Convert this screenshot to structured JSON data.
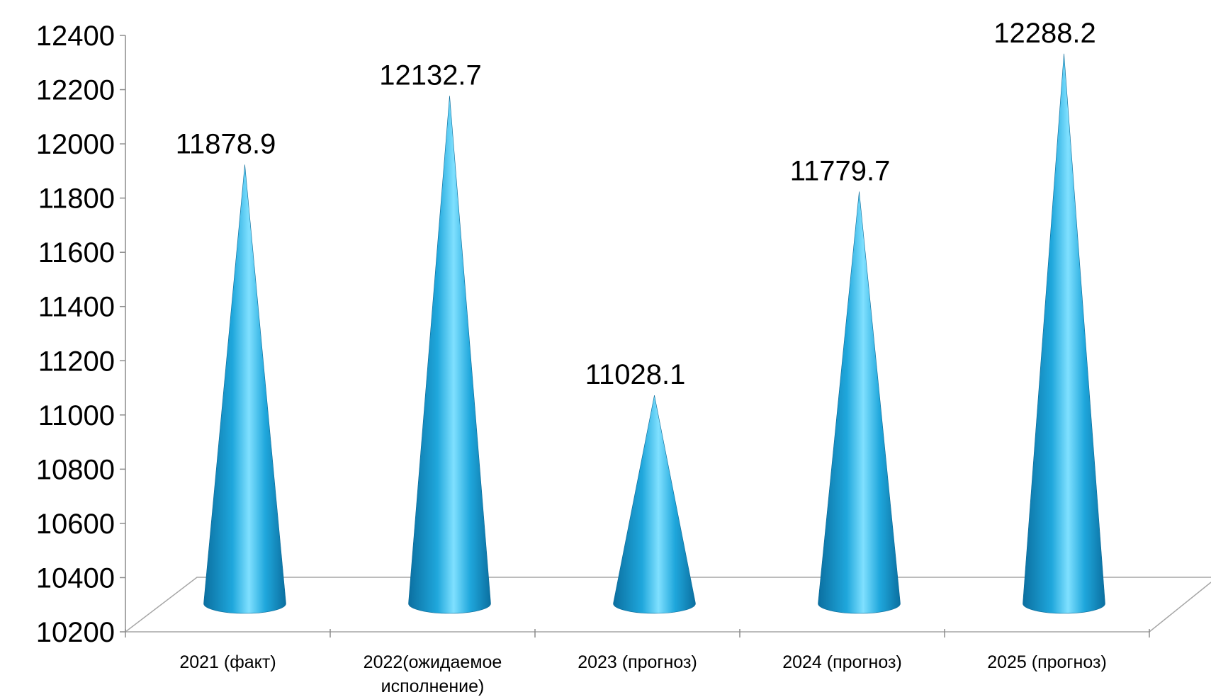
{
  "chart_data": {
    "type": "bar",
    "bar_shape": "cone",
    "categories": [
      "2021 (факт)",
      "2022(ожидаемое исполнение)",
      "2023 (прогноз)",
      "2024 (прогноз)",
      "2025 (прогноз)"
    ],
    "category_lines": [
      [
        "2021 (факт)"
      ],
      [
        "2022(ожидаемое",
        "исполнение)"
      ],
      [
        "2023 (прогноз)"
      ],
      [
        "2024 (прогноз)"
      ],
      [
        "2025 (прогноз)"
      ]
    ],
    "values": [
      11878.9,
      12132.7,
      11028.1,
      11779.7,
      12288.2
    ],
    "value_labels": [
      "11878.9",
      "12132.7",
      "11028.1",
      "11779.7",
      "12288.2"
    ],
    "ylim": [
      10200,
      12400
    ],
    "yticks": [
      10200,
      10400,
      10600,
      10800,
      11000,
      11200,
      11400,
      11600,
      11800,
      12000,
      12200,
      12400
    ],
    "title": "",
    "xlabel": "",
    "ylabel": "",
    "grid": false,
    "legend": false,
    "colors": {
      "cone_edge": "#0b6fa0",
      "cone_mid": "#1fa7dc",
      "cone_highlight": "#7fe0ff",
      "axis": "#8c8c8c",
      "floor": "#a6a6a6"
    }
  }
}
